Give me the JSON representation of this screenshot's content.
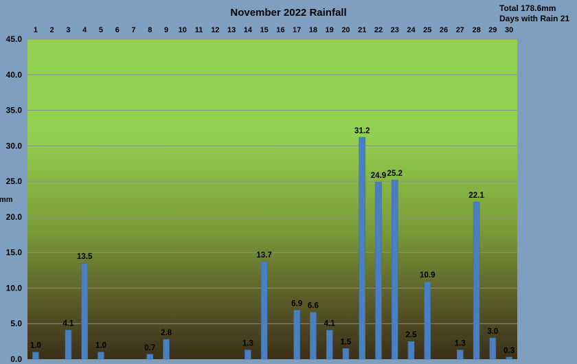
{
  "chart_data": {
    "type": "bar",
    "title": "November 2022 Rainfall",
    "summary_total": "Total 178.6mm",
    "summary_days": "Days with Rain 21",
    "ylabel": "mm",
    "xlabel": "",
    "ylim": [
      0,
      45
    ],
    "yticks": [
      "0.0",
      "5.0",
      "10.0",
      "15.0",
      "20.0",
      "25.0",
      "30.0",
      "35.0",
      "40.0",
      "45.0"
    ],
    "ytick_values": [
      0,
      5,
      10,
      15,
      20,
      25,
      30,
      35,
      40,
      45
    ],
    "categories": [
      "1",
      "2",
      "3",
      "4",
      "5",
      "6",
      "7",
      "8",
      "9",
      "10",
      "11",
      "12",
      "13",
      "14",
      "15",
      "16",
      "17",
      "18",
      "19",
      "20",
      "21",
      "22",
      "23",
      "24",
      "25",
      "26",
      "27",
      "28",
      "29",
      "30"
    ],
    "values": [
      1.0,
      0,
      4.1,
      13.5,
      1.0,
      0,
      0,
      0.7,
      2.8,
      0,
      0,
      0,
      0,
      1.3,
      13.7,
      0,
      6.9,
      6.6,
      4.1,
      1.5,
      31.2,
      24.9,
      25.2,
      2.5,
      10.9,
      0,
      1.3,
      22.1,
      3.0,
      0.3
    ],
    "data_labels": [
      "1.0",
      "",
      "4.1",
      "13.5",
      "1.0",
      "",
      "",
      "0.7",
      "2.8",
      "",
      "",
      "",
      "",
      "1.3",
      "13.7",
      "",
      "6.9",
      "6.6",
      "4.1",
      "1.5",
      "31.2",
      "24.9",
      "25.2",
      "2.5",
      "10.9",
      "",
      "1.3",
      "22.1",
      "3.0",
      "0.3"
    ],
    "grid": true,
    "legend": "none",
    "colors": {
      "background": "#7f9fc0",
      "plot_top": "#92d050",
      "plot_bottom": "#3b2f18",
      "bar": "#4a7fc0",
      "grid": "#8c8c8c"
    }
  }
}
